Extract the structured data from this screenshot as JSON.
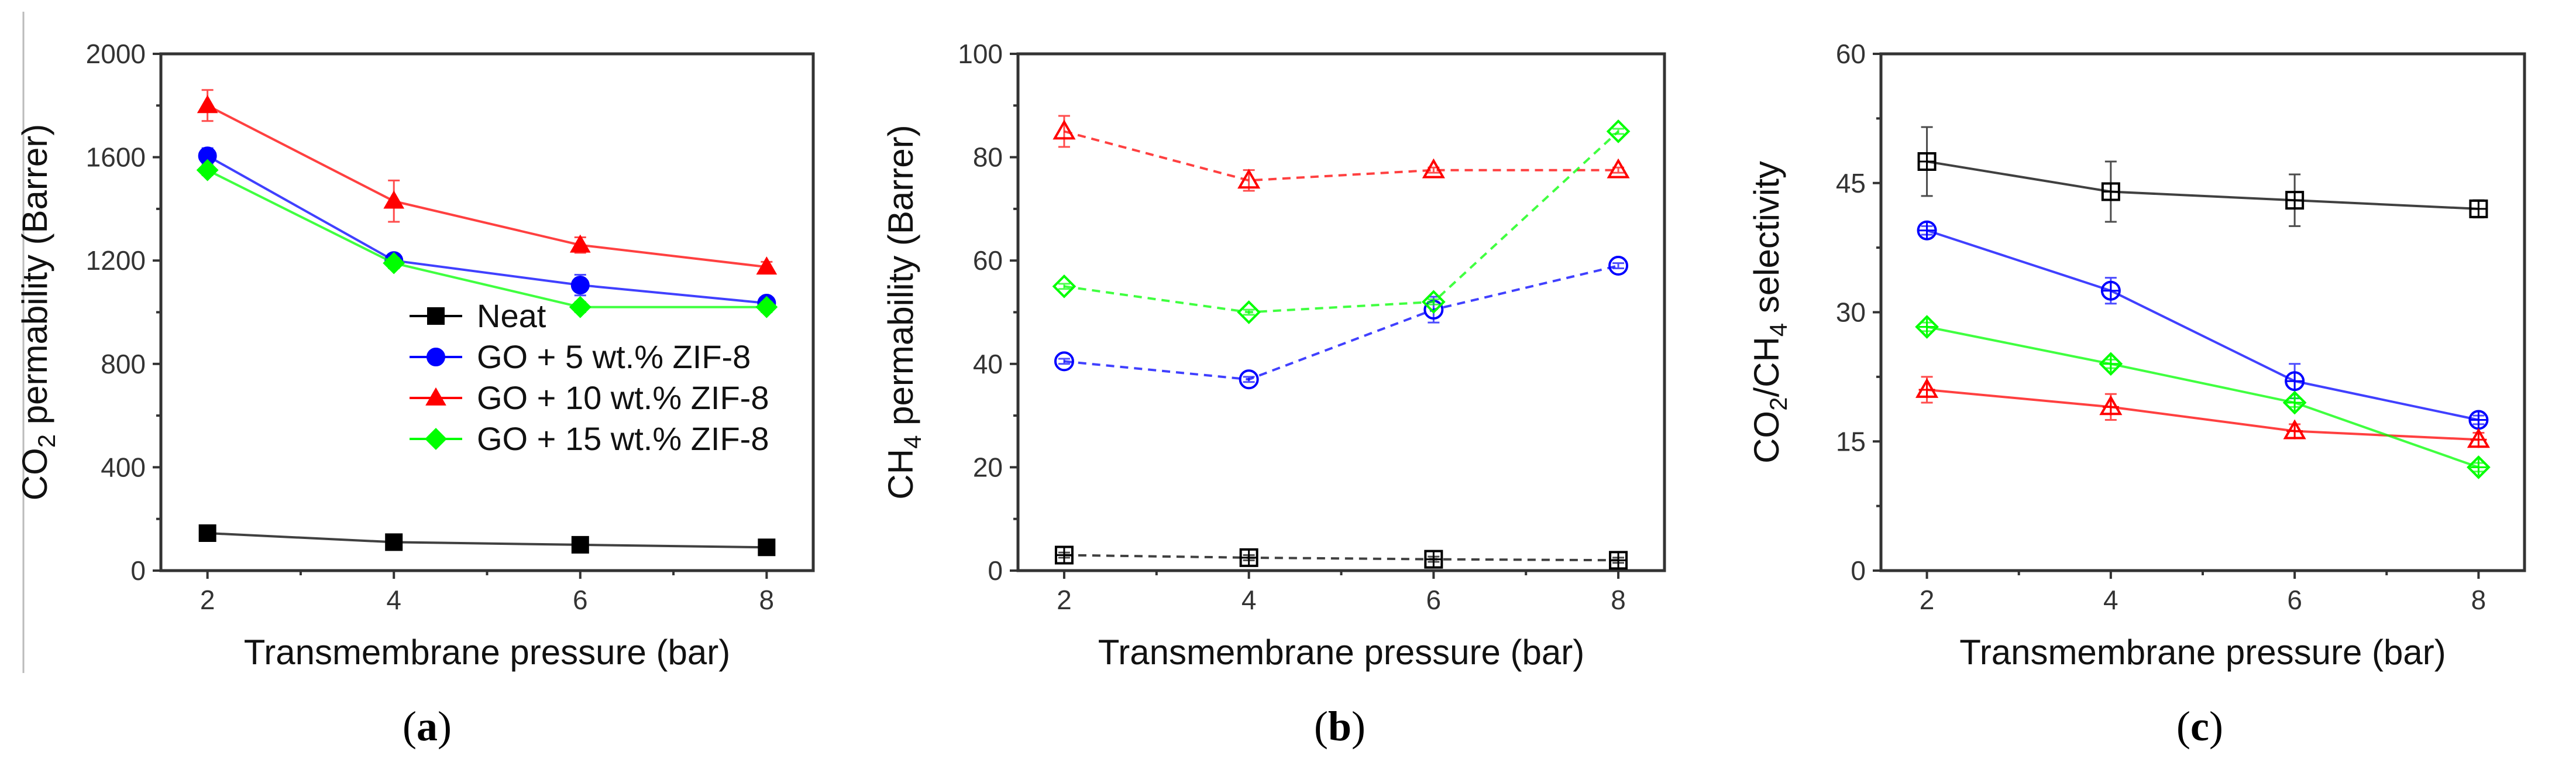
{
  "figure": {
    "panels": [
      "(a)",
      "(b)",
      "(c)"
    ]
  },
  "chart_data": [
    {
      "type": "line",
      "panel": "a",
      "caption_letter": "a",
      "xlabel": "Transmembrane pressure (bar)",
      "ylabel_parts": [
        "CO",
        "2",
        " permability (Barrer)"
      ],
      "x": [
        2,
        4,
        6,
        8
      ],
      "xlim": [
        1.5,
        8.5
      ],
      "xticks": [
        2,
        4,
        6,
        8
      ],
      "ylim": [
        0,
        2000
      ],
      "yticks": [
        0,
        400,
        800,
        1200,
        1600,
        2000
      ],
      "legend_position": "center-right",
      "series": [
        {
          "name": "Neat",
          "color": "#000000",
          "marker": "square",
          "filled": true,
          "dashed": false,
          "values": [
            145,
            110,
            100,
            90
          ],
          "errors": [
            10,
            10,
            10,
            10
          ]
        },
        {
          "name": "GO + 5 wt.% ZIF-8",
          "color": "#0000ff",
          "marker": "circle",
          "filled": true,
          "dashed": false,
          "values": [
            1605,
            1200,
            1105,
            1035
          ],
          "errors": [
            30,
            20,
            40,
            20
          ]
        },
        {
          "name": "GO + 10 wt.% ZIF-8",
          "color": "#ff0000",
          "marker": "triangle",
          "filled": true,
          "dashed": false,
          "values": [
            1800,
            1430,
            1260,
            1175
          ],
          "errors": [
            60,
            80,
            30,
            20
          ]
        },
        {
          "name": "GO + 15 wt.% ZIF-8",
          "color": "#00ff00",
          "marker": "diamond",
          "filled": true,
          "dashed": false,
          "values": [
            1550,
            1190,
            1020,
            1020
          ],
          "errors": [
            20,
            20,
            20,
            20
          ]
        }
      ]
    },
    {
      "type": "line",
      "panel": "b",
      "caption_letter": "b",
      "xlabel": "Transmembrane pressure (bar)",
      "ylabel_parts": [
        "CH",
        "4",
        " permability (Barrer)"
      ],
      "x": [
        2,
        4,
        6,
        8
      ],
      "xlim": [
        1.5,
        8.5
      ],
      "xticks": [
        2,
        4,
        6,
        8
      ],
      "ylim": [
        0,
        100
      ],
      "yticks": [
        0,
        20,
        40,
        60,
        80,
        100
      ],
      "series": [
        {
          "name": "Neat",
          "color": "#000000",
          "marker": "square-plus",
          "filled": false,
          "dashed": true,
          "values": [
            3,
            2.5,
            2.2,
            2
          ],
          "errors": [
            0.5,
            0.5,
            0.5,
            0.5
          ]
        },
        {
          "name": "GO + 5 wt.% ZIF-8",
          "color": "#0000ff",
          "marker": "circle",
          "filled": false,
          "dashed": true,
          "values": [
            40.5,
            37,
            50.5,
            59
          ],
          "errors": [
            0.5,
            0.5,
            2.5,
            0.5
          ]
        },
        {
          "name": "GO + 10 wt.% ZIF-8",
          "color": "#ff0000",
          "marker": "triangle",
          "filled": false,
          "dashed": true,
          "values": [
            85,
            75.5,
            77.5,
            77.5
          ],
          "errors": [
            3,
            2,
            0.5,
            0.5
          ]
        },
        {
          "name": "GO + 15 wt.% ZIF-8",
          "color": "#00ff00",
          "marker": "diamond",
          "filled": false,
          "dashed": true,
          "values": [
            55,
            50,
            52,
            85
          ],
          "errors": [
            0.5,
            0.5,
            0.5,
            0.5
          ]
        }
      ]
    },
    {
      "type": "line",
      "panel": "c",
      "caption_letter": "c",
      "xlabel": "Transmembrane pressure (bar)",
      "ylabel_parts": [
        "CO",
        "2",
        "/CH",
        "4",
        " selectivity"
      ],
      "x": [
        2,
        4,
        6,
        8
      ],
      "xlim": [
        1.5,
        8.5
      ],
      "xticks": [
        2,
        4,
        6,
        8
      ],
      "ylim": [
        0,
        60
      ],
      "yticks": [
        0,
        15,
        30,
        45,
        60
      ],
      "series": [
        {
          "name": "Neat",
          "color": "#000000",
          "marker": "square-plus",
          "filled": false,
          "dashed": false,
          "values": [
            47.5,
            44,
            43,
            42
          ],
          "errors": [
            4,
            3.5,
            3,
            1
          ]
        },
        {
          "name": "GO + 5 wt.% ZIF-8",
          "color": "#0000ff",
          "marker": "circle-plus",
          "filled": false,
          "dashed": false,
          "values": [
            39.5,
            32.5,
            22,
            17.5
          ],
          "errors": [
            0.5,
            1.5,
            2,
            0.5
          ]
        },
        {
          "name": "GO + 10 wt.% ZIF-8",
          "color": "#ff0000",
          "marker": "triangle-plus",
          "filled": false,
          "dashed": false,
          "values": [
            21,
            19,
            16.2,
            15.2
          ],
          "errors": [
            1.5,
            1.5,
            0.8,
            0.8
          ]
        },
        {
          "name": "GO + 15 wt.% ZIF-8",
          "color": "#00ff00",
          "marker": "diamond-plus",
          "filled": false,
          "dashed": false,
          "values": [
            28.3,
            24,
            19.5,
            12
          ],
          "errors": [
            0.5,
            0.5,
            0.5,
            0.5
          ]
        }
      ]
    }
  ]
}
